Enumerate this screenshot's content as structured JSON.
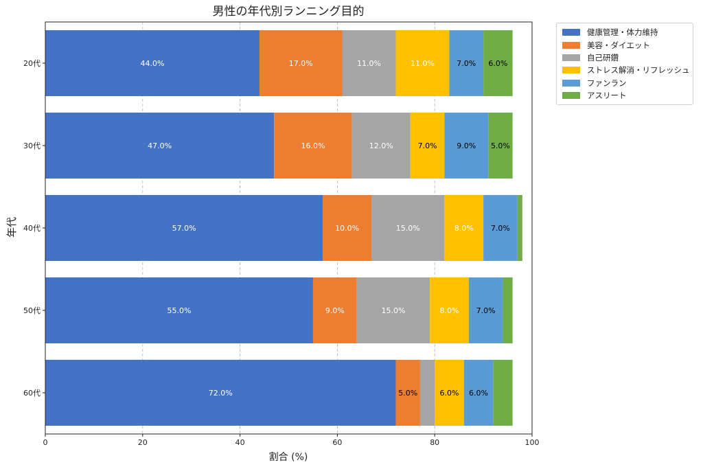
{
  "chart_data": {
    "type": "bar",
    "orientation": "horizontal",
    "stacked": true,
    "title": "男性の年代別ランニング目的",
    "xlabel": "割合 (%)",
    "ylabel": "年代",
    "xlim": [
      0,
      100
    ],
    "xticks": [
      0,
      20,
      40,
      60,
      80,
      100
    ],
    "grid": "x dashed",
    "legend_position": "outside top-right",
    "categories": [
      "20代",
      "30代",
      "40代",
      "50代",
      "60代"
    ],
    "series": [
      {
        "name": "健康管理・体力維持",
        "color": "#4472c4",
        "values": [
          44,
          47,
          57,
          55,
          72
        ],
        "labels": [
          "44.0%",
          "47.0%",
          "57.0%",
          "55.0%",
          "72.0%"
        ],
        "label_color": "#ffffff"
      },
      {
        "name": "美容・ダイエット",
        "color": "#ed7d31",
        "values": [
          17,
          16,
          10,
          9,
          5
        ],
        "labels": [
          "17.0%",
          "16.0%",
          "10.0%",
          "9.0%",
          "5.0%"
        ],
        "label_color": "mixed"
      },
      {
        "name": "自己研鑽",
        "color": "#a5a5a5",
        "values": [
          11,
          12,
          15,
          15,
          3
        ],
        "labels": [
          "11.0%",
          "12.0%",
          "15.0%",
          "15.0%",
          ""
        ],
        "label_color": "#ffffff"
      },
      {
        "name": "ストレス解消・リフレッシュ",
        "color": "#ffc000",
        "values": [
          11,
          7,
          8,
          8,
          6
        ],
        "labels": [
          "11.0%",
          "7.0%",
          "8.0%",
          "8.0%",
          "6.0%"
        ],
        "label_color": "mixed"
      },
      {
        "name": "ファンラン",
        "color": "#5b9bd5",
        "values": [
          7,
          9,
          7,
          7,
          6
        ],
        "labels": [
          "7.0%",
          "9.0%",
          "7.0%",
          "7.0%",
          "6.0%"
        ],
        "label_color": "#000000"
      },
      {
        "name": "アスリート",
        "color": "#70ad47",
        "values": [
          6,
          5,
          1,
          2,
          4
        ],
        "labels": [
          "6.0%",
          "5.0%",
          "",
          "",
          ""
        ],
        "label_color": "#000000"
      }
    ]
  }
}
